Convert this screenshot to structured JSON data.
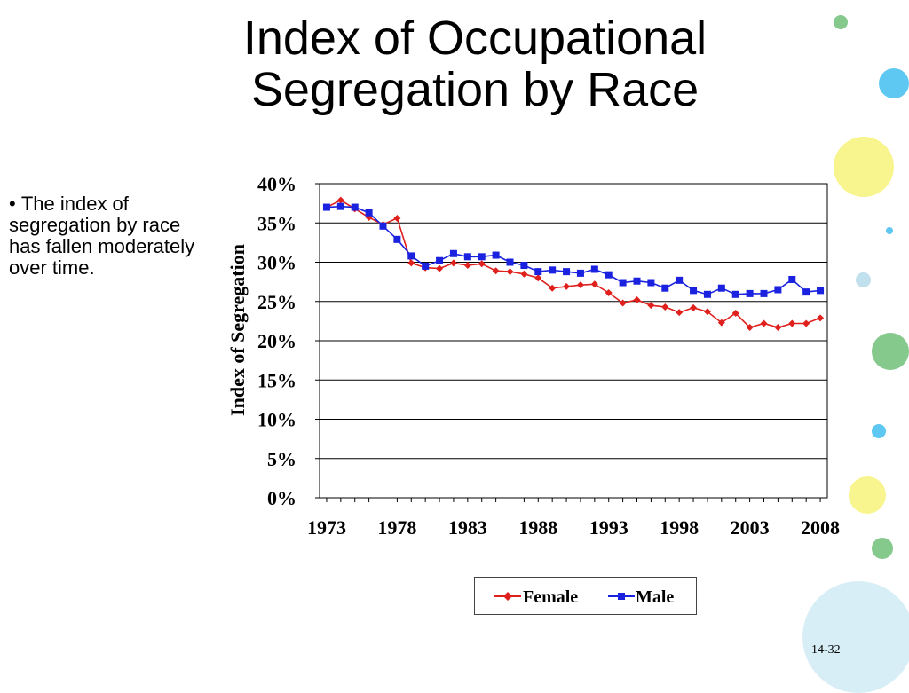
{
  "slide": {
    "title_line1": "Index of Occupational",
    "title_line2": "Segregation by Race",
    "bullets": [
      "The index of segregation by race has fallen moderately over time."
    ],
    "page_number": "14-32"
  },
  "decor": {
    "colors": [
      "#86c98d",
      "#5ec8f2",
      "#f8f58f",
      "#bfe0ec",
      "#d7eef6"
    ]
  },
  "chart_data": {
    "type": "line",
    "title": "",
    "xlabel": "",
    "ylabel": "Index of Segregation",
    "x": [
      1973,
      1974,
      1975,
      1976,
      1977,
      1978,
      1979,
      1980,
      1981,
      1982,
      1983,
      1984,
      1985,
      1986,
      1987,
      1988,
      1989,
      1990,
      1991,
      1992,
      1993,
      1994,
      1995,
      1996,
      1997,
      1998,
      1999,
      2000,
      2001,
      2002,
      2003,
      2004,
      2005,
      2006,
      2007,
      2008
    ],
    "x_ticks": [
      "1973",
      "1978",
      "1983",
      "1988",
      "1993",
      "1998",
      "2003",
      "2008"
    ],
    "ylim": [
      0,
      40
    ],
    "y_ticks": [
      "0%",
      "5%",
      "10%",
      "15%",
      "20%",
      "25%",
      "30%",
      "35%",
      "40%"
    ],
    "grid": true,
    "legend_position": "bottom",
    "series": [
      {
        "name": "Female",
        "color": "#e0201c",
        "marker": "diamond",
        "values": [
          37.0,
          37.9,
          36.8,
          35.7,
          34.8,
          35.6,
          29.9,
          29.3,
          29.2,
          29.9,
          29.6,
          29.8,
          28.9,
          28.8,
          28.5,
          28.0,
          26.7,
          26.9,
          27.1,
          27.2,
          26.1,
          24.8,
          25.2,
          24.5,
          24.3,
          23.6,
          24.2,
          23.7,
          22.3,
          23.5,
          21.7,
          22.2,
          21.7,
          22.2,
          22.2,
          22.9
        ]
      },
      {
        "name": "Male",
        "color": "#1a22e0",
        "marker": "square",
        "values": [
          37.0,
          37.1,
          37.0,
          36.3,
          34.6,
          32.9,
          30.8,
          29.5,
          30.2,
          31.1,
          30.7,
          30.7,
          30.9,
          30.0,
          29.6,
          28.8,
          29.0,
          28.8,
          28.6,
          29.1,
          28.4,
          27.4,
          27.6,
          27.4,
          26.7,
          27.7,
          26.4,
          25.9,
          26.7,
          25.9,
          26.0,
          26.0,
          26.5,
          27.8,
          26.2,
          26.4
        ]
      }
    ]
  }
}
